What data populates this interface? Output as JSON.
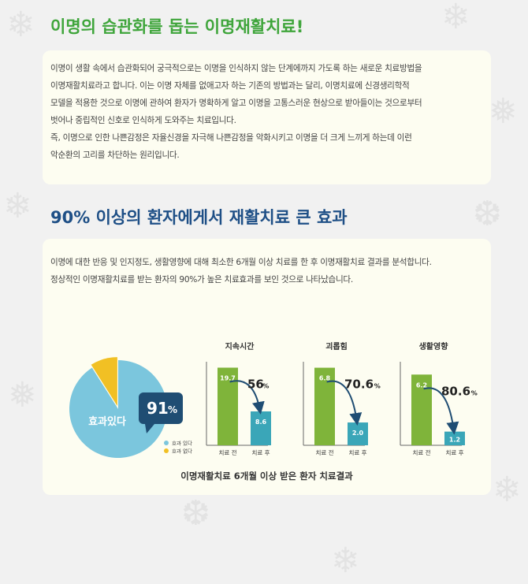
{
  "section1": {
    "title": "이명의 습관화를 돕는 이명재활치료!",
    "lines": [
      "이명이 생활 속에서 습관화되어 궁극적으로는 이명을 인식하지 않는 단계에까지 가도록 하는 새로운 치료방법을",
      "이명재활치료라고 합니다. 이는 이명 자체를 없애고자 하는 기존의 방법과는 달리, 이명치료에 신경생리학적",
      "모델을 적용한 것으로 이명에 관하여 환자가 명확하게 알고 이명을 고통스러운 현상으로 받아들이는 것으로부터",
      "벗어나 중립적인 신호로 인식하게 도와주는 치료입니다.",
      "즉, 이명으로 인한 나쁜감정은 자율신경을 자극해 나쁜감정을 악화시키고 이명을 더 크게 느끼게 하는데 이런",
      "악순환의 고리를 차단하는 원리입니다."
    ]
  },
  "section2": {
    "title": "90% 이상의 환자에게서 재활치료 큰 효과",
    "lines": [
      "이명에 대한 반응 및 인지정도, 생활영향에 대해 최소한 6개월 이상 치료를 한 후 이명재활치료 결과를 분석합니다.",
      "정상적인 이명재활치료를 받는 환자의 90%가 높은 치료효과를 보인 것으로 나타났습니다."
    ],
    "caption": "이명재활치료 6개월 이상 받은 환자 치료결과"
  },
  "colors": {
    "green_title": "#3fa53b",
    "blue_title": "#1e4f86",
    "pie_main": "#7bc6dd",
    "pie_slice": "#f1c024",
    "bar_before": "#7fb43a",
    "bar_after": "#3aa6b8",
    "callout": "#1f4d73"
  },
  "chart_data": [
    {
      "type": "pie",
      "slices": [
        {
          "label": "효과 있다",
          "value": 91
        },
        {
          "label": "효과 없다",
          "value": 9
        }
      ],
      "center_label": "효과있다",
      "callout_value": "91",
      "callout_unit": "%",
      "legend": "bottom-right"
    },
    {
      "type": "bar",
      "title": "지속시간",
      "categories": [
        "치료 전",
        "치료 후"
      ],
      "values": [
        19.7,
        8.6
      ],
      "value_labels": [
        "19.7",
        "8.6"
      ],
      "change": "56",
      "change_unit": "%",
      "ylim": [
        0,
        22
      ]
    },
    {
      "type": "bar",
      "title": "괴롭힘",
      "categories": [
        "치료 전",
        "치료 후"
      ],
      "values": [
        6.8,
        2.0
      ],
      "value_labels": [
        "6.8",
        "2.0"
      ],
      "change": "70.6",
      "change_unit": "%",
      "ylim": [
        0,
        7.6
      ]
    },
    {
      "type": "bar",
      "title": "생활영향",
      "categories": [
        "치료 전",
        "치료 후"
      ],
      "values": [
        6.2,
        1.2
      ],
      "value_labels": [
        "6.2",
        "1.2"
      ],
      "change": "80.6",
      "change_unit": "%",
      "ylim": [
        0,
        7.6
      ]
    }
  ]
}
